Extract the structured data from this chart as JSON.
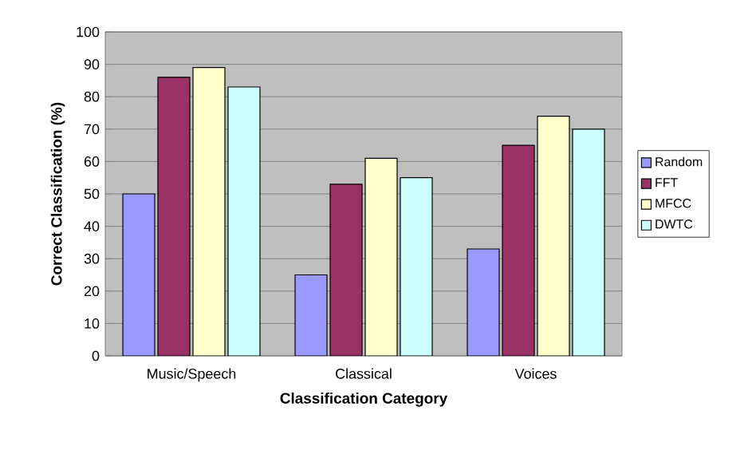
{
  "chart_data": {
    "type": "bar",
    "xlabel": "Classification Category",
    "ylabel": "Correct Classification (%)",
    "categories": [
      "Music/Speech",
      "Classical",
      "Voices"
    ],
    "series": [
      {
        "name": "Random",
        "color": "#9999ff",
        "values": [
          50,
          25,
          33
        ]
      },
      {
        "name": "FFT",
        "color": "#993366",
        "values": [
          86,
          53,
          65
        ]
      },
      {
        "name": "MFCC",
        "color": "#ffffcc",
        "values": [
          89,
          61,
          74
        ]
      },
      {
        "name": "DWTC",
        "color": "#ccffff",
        "values": [
          83,
          55,
          70
        ]
      }
    ],
    "ylim": [
      0,
      100
    ],
    "yticks": [
      0,
      10,
      20,
      30,
      40,
      50,
      60,
      70,
      80,
      90,
      100
    ],
    "grid": "y",
    "legend": "right"
  }
}
